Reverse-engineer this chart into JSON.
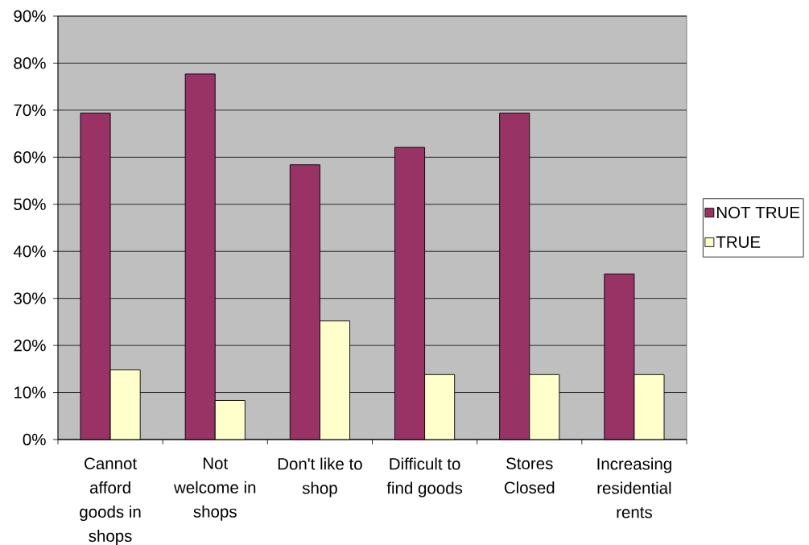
{
  "chart_data": {
    "type": "bar",
    "categories": [
      "Cannot afford goods in shops",
      "Not welcome in shops",
      "Don't like to shop",
      "Difficult to find goods",
      "Stores Closed",
      "Increasing residential rents"
    ],
    "series": [
      {
        "name": "NOT TRUE",
        "color": "#993366",
        "values": [
          69.4,
          77.7,
          58.4,
          62.1,
          69.4,
          35.2
        ]
      },
      {
        "name": "TRUE",
        "color": "#ffffcc",
        "values": [
          14.8,
          8.3,
          25.2,
          13.8,
          13.8,
          13.8
        ]
      }
    ],
    "ylim": [
      0,
      90
    ],
    "yticks": [
      {
        "value": 0,
        "label": "0%"
      },
      {
        "value": 10,
        "label": "10%"
      },
      {
        "value": 20,
        "label": "20%"
      },
      {
        "value": 30,
        "label": "30%"
      },
      {
        "value": 40,
        "label": "40%"
      },
      {
        "value": 50,
        "label": "50%"
      },
      {
        "value": 60,
        "label": "60%"
      },
      {
        "value": 70,
        "label": "70%"
      },
      {
        "value": 80,
        "label": "80%"
      },
      {
        "value": 90,
        "label": "90%"
      }
    ],
    "grid": "y",
    "legend": "right"
  }
}
